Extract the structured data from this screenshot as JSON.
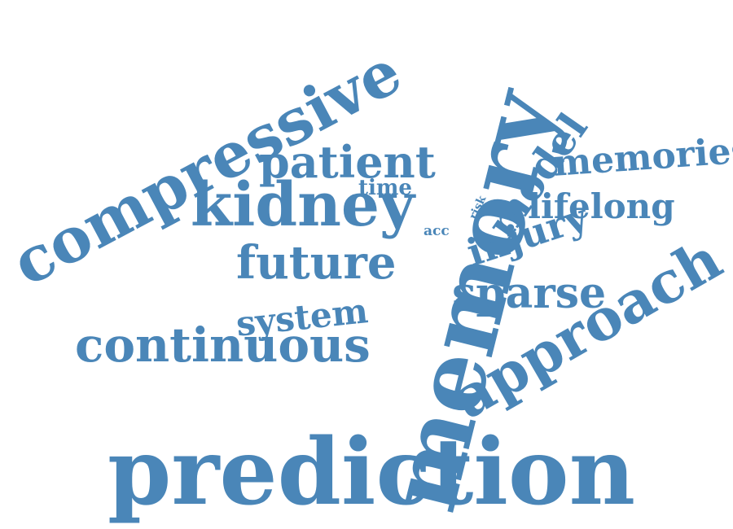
{
  "accent_color": "#4a86b8",
  "words": [
    {
      "id": "prediction",
      "text": "prediction"
    },
    {
      "id": "memory",
      "text": "memory"
    },
    {
      "id": "compressive",
      "text": "compressive"
    },
    {
      "id": "approach",
      "text": "approach"
    },
    {
      "id": "kidney",
      "text": "kidney"
    },
    {
      "id": "continuous",
      "text": "continuous"
    },
    {
      "id": "patient",
      "text": "patient"
    },
    {
      "id": "future",
      "text": "future"
    },
    {
      "id": "sparse",
      "text": "sparse"
    },
    {
      "id": "system",
      "text": "system"
    },
    {
      "id": "memories",
      "text": "memories"
    },
    {
      "id": "model",
      "text": "model"
    },
    {
      "id": "injury",
      "text": "injury"
    },
    {
      "id": "lifelong",
      "text": "lifelong"
    },
    {
      "id": "time",
      "text": "time"
    },
    {
      "id": "acc",
      "text": "acc"
    },
    {
      "id": "risk",
      "text": "risk"
    }
  ]
}
